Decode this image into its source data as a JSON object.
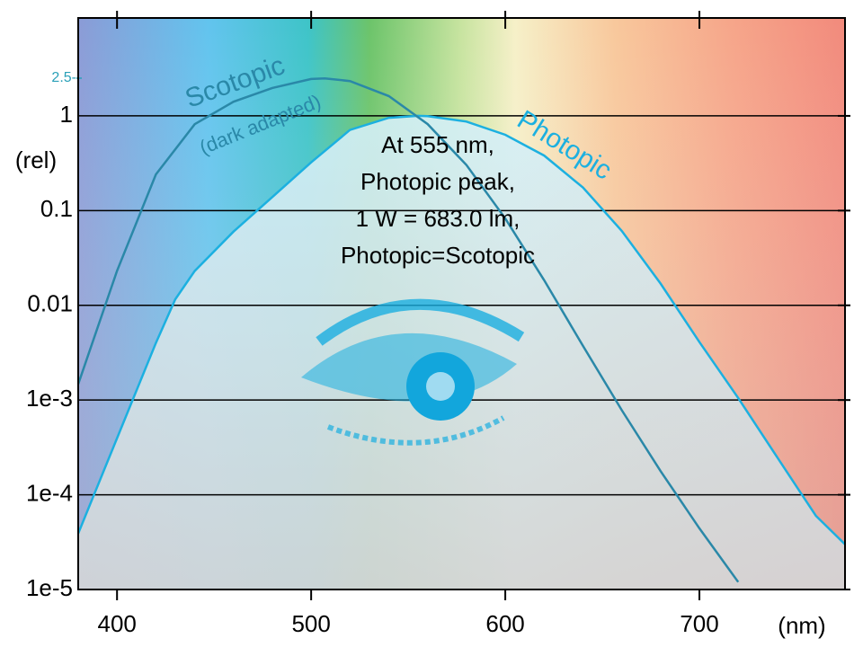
{
  "chart_data": {
    "type": "line",
    "y_label": "(rel)",
    "x_label": "(nm)",
    "log_y": true,
    "grid": true,
    "xlim": [
      380,
      775
    ],
    "ylim": [
      1e-05,
      10.8
    ],
    "xticks": [
      400,
      500,
      600,
      700
    ],
    "yticks": [
      {
        "value": 1e-05,
        "label": "1e-5"
      },
      {
        "value": 0.0001,
        "label": "1e-4"
      },
      {
        "value": 0.001,
        "label": "1e-3"
      },
      0.01,
      0.1,
      1
    ],
    "extra_ytick": {
      "value": 2.5,
      "label": "2.5-"
    },
    "annotation": [
      "At 555 nm,",
      "Photopic peak,",
      "1 W = 683.0 lm,",
      "Photopic=Scotopic"
    ],
    "series": [
      {
        "name": "Photopic",
        "color": "#1cb0e0",
        "fill": "#cdeaf4",
        "x": [
          380,
          400,
          420,
          430,
          440,
          460,
          480,
          500,
          520,
          540,
          555,
          560,
          580,
          600,
          620,
          640,
          660,
          680,
          700,
          720,
          740,
          760,
          775
        ],
        "values": [
          3.9e-05,
          0.000396,
          0.004,
          0.0116,
          0.023,
          0.06,
          0.139,
          0.323,
          0.71,
          0.954,
          1,
          0.995,
          0.87,
          0.631,
          0.381,
          0.175,
          0.061,
          0.017,
          0.0041,
          0.00105,
          0.00025,
          6e-05,
          3e-05
        ]
      },
      {
        "name": "Scotopic",
        "subtitle": "(dark adapted)",
        "color": "#2a88a8",
        "x": [
          380,
          400,
          420,
          440,
          460,
          480,
          500,
          507,
          520,
          540,
          560,
          580,
          600,
          620,
          640,
          660,
          680,
          700,
          720
        ],
        "values": [
          0.00147,
          0.0231,
          0.241,
          0.817,
          1.41,
          1.97,
          2.45,
          2.49,
          2.33,
          1.62,
          0.819,
          0.302,
          0.0825,
          0.0184,
          0.00373,
          0.00078,
          0.000178,
          4.43e-05,
          1.2e-05
        ]
      }
    ]
  }
}
